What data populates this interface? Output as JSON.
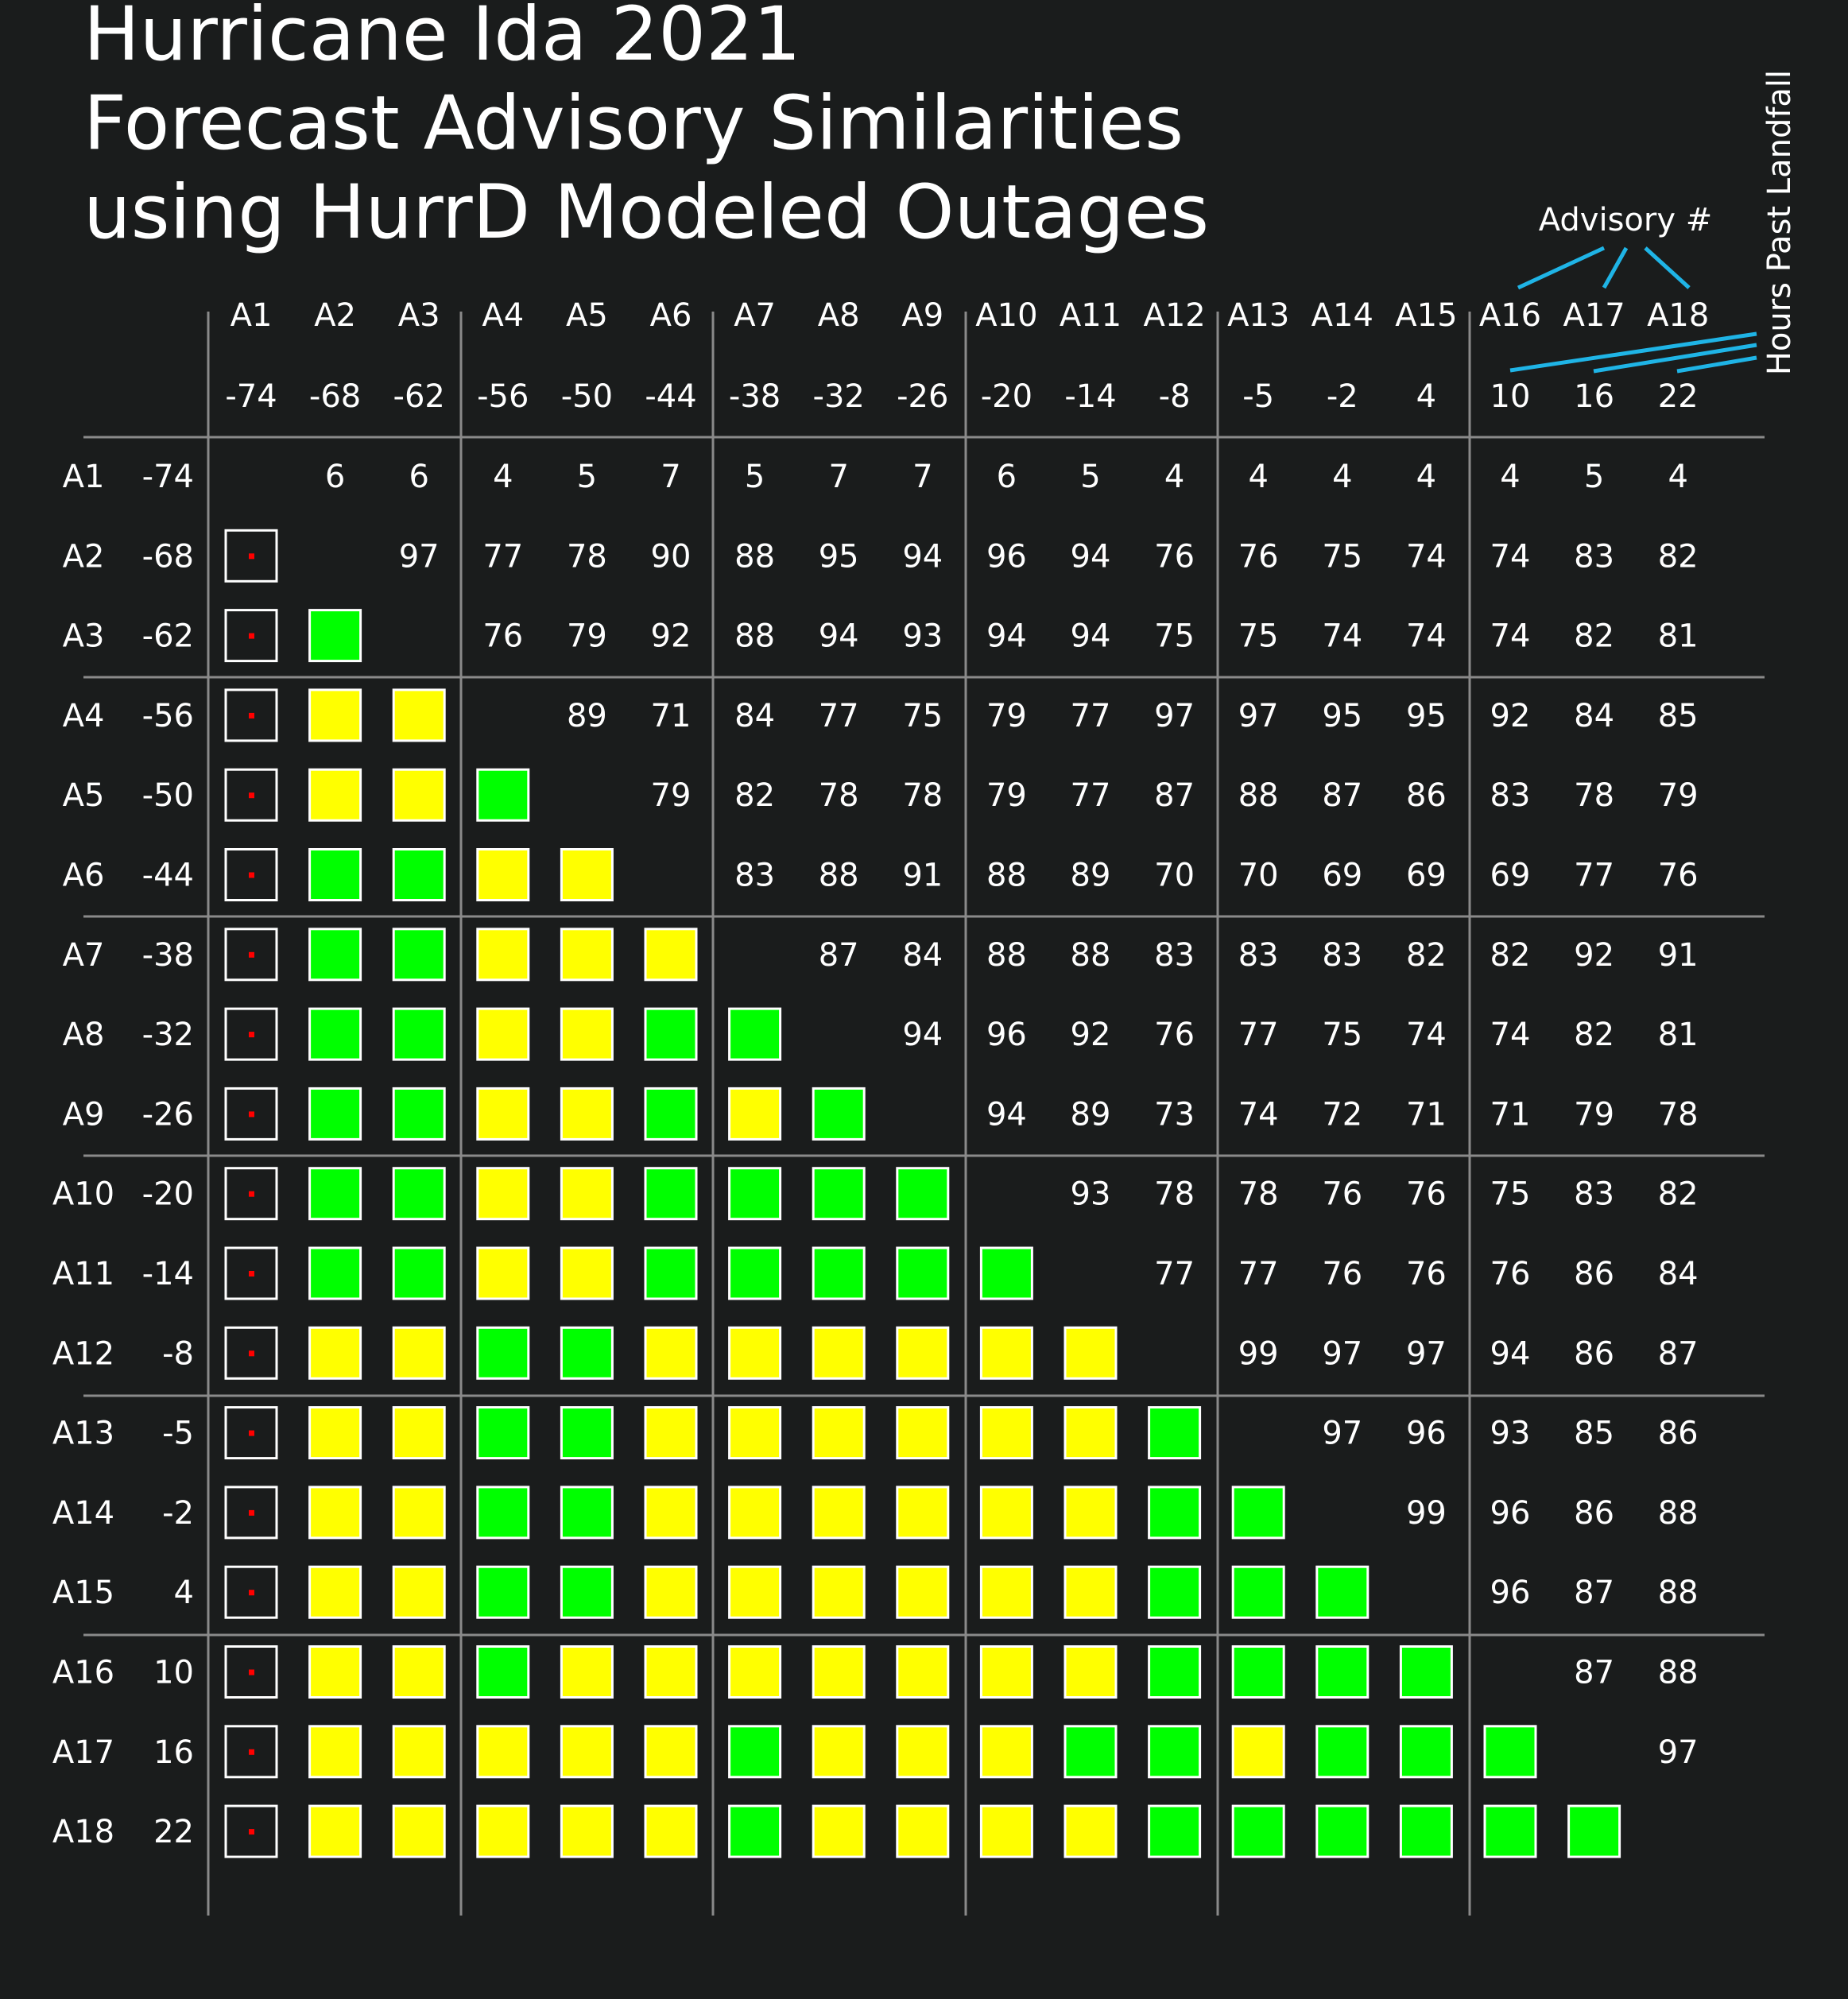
{
  "title_lines": [
    "Hurricane Ida 2021",
    "Forecast Advisory Similarities",
    "using HurrD Modeled Outages"
  ],
  "annotations": {
    "advisory_label": "Advisory #",
    "hours_label": "Hours Past Landfall"
  },
  "colors": {
    "background": "#1a1c1c",
    "text": "#ffffff",
    "grid": "#8a8a8a",
    "high_similarity": "#00ff00",
    "mid_similarity": "#ffff00",
    "low_marker": "#ff0000",
    "annotation_line": "#1fb4e6"
  },
  "chart_data": {
    "type": "heatmap",
    "advisories": [
      "A1",
      "A2",
      "A3",
      "A4",
      "A5",
      "A6",
      "A7",
      "A8",
      "A9",
      "A10",
      "A11",
      "A12",
      "A13",
      "A14",
      "A15",
      "A16",
      "A17",
      "A18"
    ],
    "hours_past_landfall": [
      "-74",
      "-68",
      "-62",
      "-56",
      "-50",
      "-44",
      "-38",
      "-32",
      "-26",
      "-20",
      "-14",
      "-8",
      "-5",
      "-2",
      "4",
      "10",
      "16",
      "22"
    ],
    "similarity_upper": [
      [
        null,
        6,
        6,
        4,
        5,
        7,
        5,
        7,
        7,
        6,
        5,
        4,
        4,
        4,
        4,
        4,
        5,
        4
      ],
      [
        null,
        null,
        97,
        77,
        78,
        90,
        88,
        95,
        94,
        96,
        94,
        76,
        76,
        75,
        74,
        74,
        83,
        82
      ],
      [
        null,
        null,
        null,
        76,
        79,
        92,
        88,
        94,
        93,
        94,
        94,
        75,
        75,
        74,
        74,
        74,
        82,
        81
      ],
      [
        null,
        null,
        null,
        null,
        89,
        71,
        84,
        77,
        75,
        79,
        77,
        97,
        97,
        95,
        95,
        92,
        84,
        85
      ],
      [
        null,
        null,
        null,
        null,
        null,
        79,
        82,
        78,
        78,
        79,
        77,
        87,
        88,
        87,
        86,
        83,
        78,
        79
      ],
      [
        null,
        null,
        null,
        null,
        null,
        null,
        83,
        88,
        91,
        88,
        89,
        70,
        70,
        69,
        69,
        69,
        77,
        76
      ],
      [
        null,
        null,
        null,
        null,
        null,
        null,
        null,
        87,
        84,
        88,
        88,
        83,
        83,
        83,
        82,
        82,
        92,
        91
      ],
      [
        null,
        null,
        null,
        null,
        null,
        null,
        null,
        null,
        94,
        96,
        92,
        76,
        77,
        75,
        74,
        74,
        82,
        81
      ],
      [
        null,
        null,
        null,
        null,
        null,
        null,
        null,
        null,
        null,
        94,
        89,
        73,
        74,
        72,
        71,
        71,
        79,
        78
      ],
      [
        null,
        null,
        null,
        null,
        null,
        null,
        null,
        null,
        null,
        null,
        93,
        78,
        78,
        76,
        76,
        75,
        83,
        82
      ],
      [
        null,
        null,
        null,
        null,
        null,
        null,
        null,
        null,
        null,
        null,
        null,
        77,
        77,
        76,
        76,
        76,
        86,
        84
      ],
      [
        null,
        null,
        null,
        null,
        null,
        null,
        null,
        null,
        null,
        null,
        null,
        null,
        99,
        97,
        97,
        94,
        86,
        87
      ],
      [
        null,
        null,
        null,
        null,
        null,
        null,
        null,
        null,
        null,
        null,
        null,
        null,
        null,
        97,
        96,
        93,
        85,
        86
      ],
      [
        null,
        null,
        null,
        null,
        null,
        null,
        null,
        null,
        null,
        null,
        null,
        null,
        null,
        null,
        99,
        96,
        86,
        88
      ],
      [
        null,
        null,
        null,
        null,
        null,
        null,
        null,
        null,
        null,
        null,
        null,
        null,
        null,
        null,
        null,
        96,
        87,
        88
      ],
      [
        null,
        null,
        null,
        null,
        null,
        null,
        null,
        null,
        null,
        null,
        null,
        null,
        null,
        null,
        null,
        null,
        87,
        88
      ],
      [
        null,
        null,
        null,
        null,
        null,
        null,
        null,
        null,
        null,
        null,
        null,
        null,
        null,
        null,
        null,
        null,
        null,
        97
      ],
      [
        null,
        null,
        null,
        null,
        null,
        null,
        null,
        null,
        null,
        null,
        null,
        null,
        null,
        null,
        null,
        null,
        null,
        null
      ]
    ],
    "color_bins": {
      "green_min": 86,
      "yellow_min": 69
    },
    "group_size": 3,
    "lower_triangle": "squares colored by similarity",
    "upper_triangle": "similarity values"
  }
}
